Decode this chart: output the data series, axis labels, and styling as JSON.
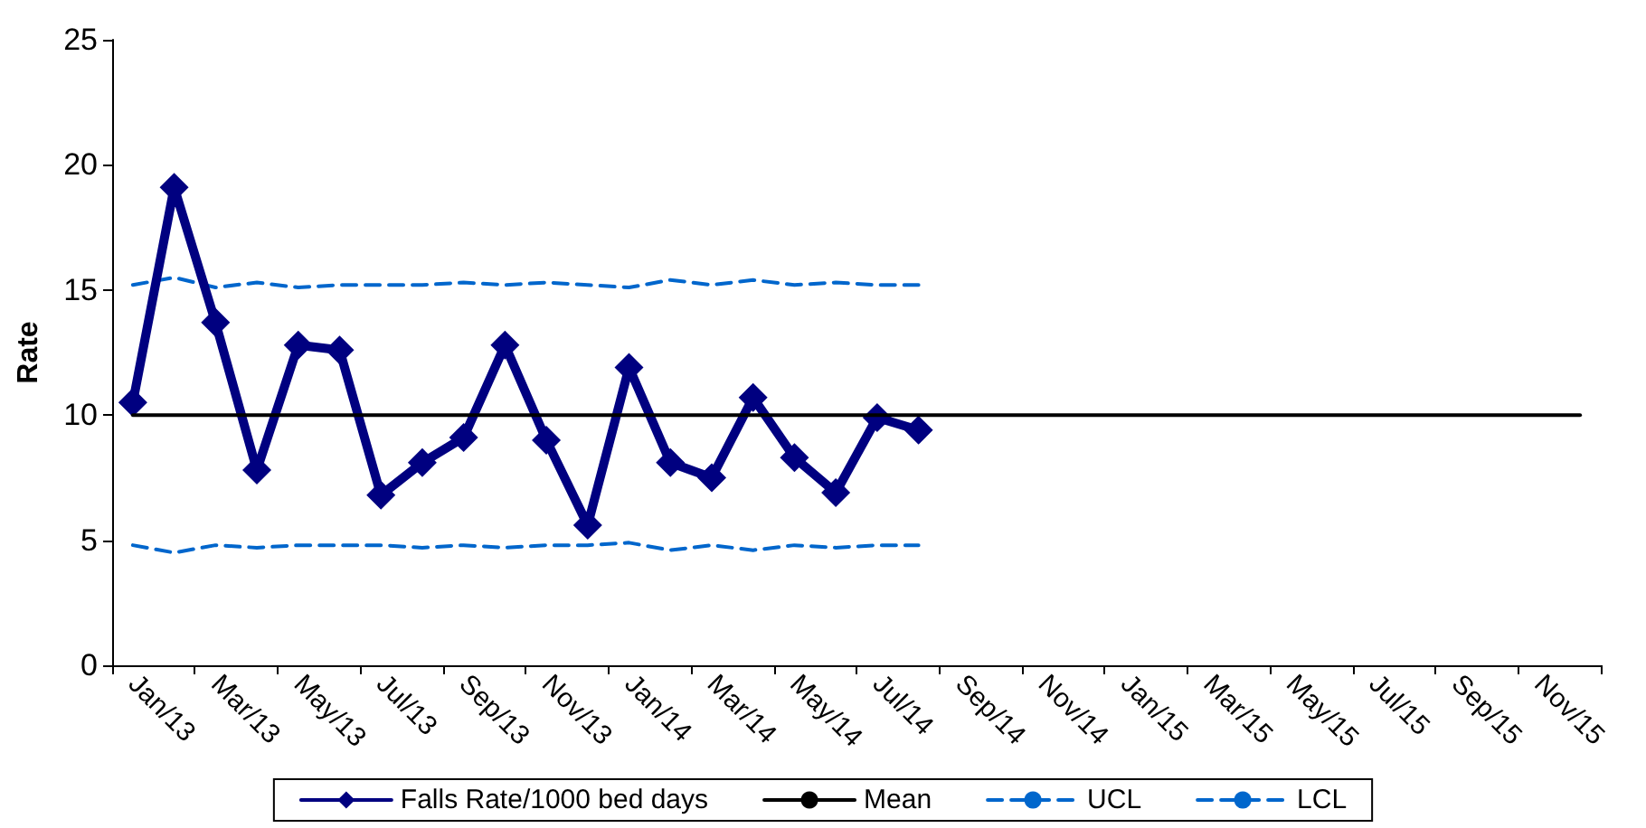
{
  "chart_data": {
    "type": "line",
    "ylabel": "Rate",
    "categories": [
      "Jan/13",
      null,
      "Mar/13",
      null,
      "May/13",
      null,
      "Jul/13",
      null,
      "Sep/13",
      null,
      "Nov/13",
      null,
      "Jan/14",
      null,
      "Mar/14",
      null,
      "May/14",
      null,
      "Jul/14",
      null,
      "Sep/14",
      null,
      "Nov/14",
      null,
      "Jan/15",
      null,
      "Mar/15",
      null,
      "May/15",
      null,
      "Jul/15",
      null,
      "Sep/15",
      null,
      "Nov/15",
      null
    ],
    "series": [
      {
        "name": "Falls Rate/1000 bed days",
        "color": "#000080",
        "marker": "diamond",
        "line_style": "solid",
        "values": [
          10.5,
          19.1,
          13.7,
          7.8,
          12.8,
          12.6,
          6.8,
          8.1,
          9.1,
          12.8,
          9.0,
          5.6,
          11.9,
          8.1,
          7.5,
          10.7,
          8.3,
          6.9,
          9.9,
          9.4,
          null,
          null,
          null,
          null,
          null,
          null,
          null,
          null,
          null,
          null,
          null,
          null,
          null,
          null,
          null,
          null
        ]
      },
      {
        "name": "Mean",
        "color": "#000000",
        "marker": "none",
        "line_style": "solid",
        "values": [
          10,
          10,
          10,
          10,
          10,
          10,
          10,
          10,
          10,
          10,
          10,
          10,
          10,
          10,
          10,
          10,
          10,
          10,
          10,
          10,
          10,
          10,
          10,
          10,
          10,
          10,
          10,
          10,
          10,
          10,
          10,
          10,
          10,
          10,
          10,
          10
        ]
      },
      {
        "name": "UCL",
        "color": "#0066cc",
        "marker": "none",
        "line_style": "dashed",
        "values": [
          15.2,
          15.5,
          15.1,
          15.3,
          15.1,
          15.2,
          15.2,
          15.2,
          15.3,
          15.2,
          15.3,
          15.2,
          15.1,
          15.4,
          15.2,
          15.4,
          15.2,
          15.3,
          15.2,
          15.2,
          null,
          null,
          null,
          null,
          null,
          null,
          null,
          null,
          null,
          null,
          null,
          null,
          null,
          null,
          null,
          null
        ]
      },
      {
        "name": "LCL",
        "color": "#0066cc",
        "marker": "none",
        "line_style": "dashed",
        "values": [
          4.8,
          4.5,
          4.8,
          4.7,
          4.8,
          4.8,
          4.8,
          4.7,
          4.8,
          4.7,
          4.8,
          4.8,
          4.9,
          4.6,
          4.8,
          4.6,
          4.8,
          4.7,
          4.8,
          4.8,
          null,
          null,
          null,
          null,
          null,
          null,
          null,
          null,
          null,
          null,
          null,
          null,
          null,
          null,
          null,
          null
        ]
      }
    ],
    "ylim": [
      0,
      25
    ],
    "yticks": [
      0,
      5,
      10,
      15,
      20,
      25
    ],
    "grid": false,
    "legend": "bottom"
  }
}
